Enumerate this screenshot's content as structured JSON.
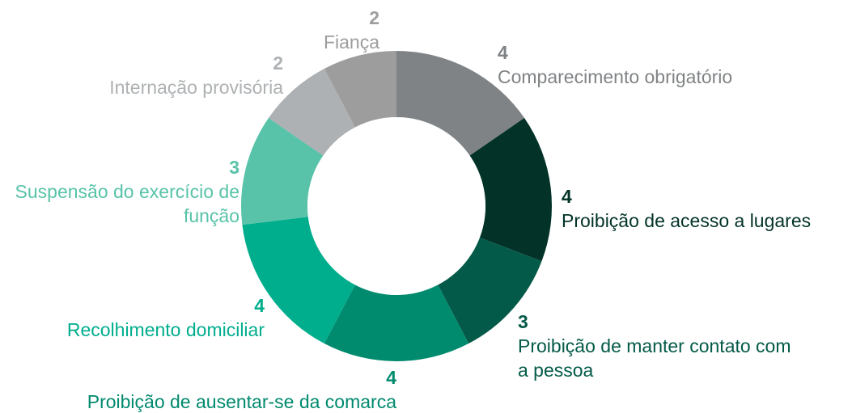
{
  "chart_data": {
    "type": "donut",
    "categories": [
      "Comparecimento obrigatório",
      "Proibição de acesso a lugares",
      "Proibição de manter contato com a pessoa",
      "Proibição de ausentar-se da comarca",
      "Recolhimento domiciliar",
      "Suspensão do exercício de função",
      "Internação provisória",
      "Fiança"
    ],
    "values": [
      4,
      4,
      3,
      4,
      4,
      3,
      2,
      2
    ],
    "colors": [
      "#808385",
      "#033328",
      "#045a48",
      "#008a6e",
      "#00ae8e",
      "#58c3a9",
      "#aeb1b3",
      "#9d9d9d"
    ]
  }
}
